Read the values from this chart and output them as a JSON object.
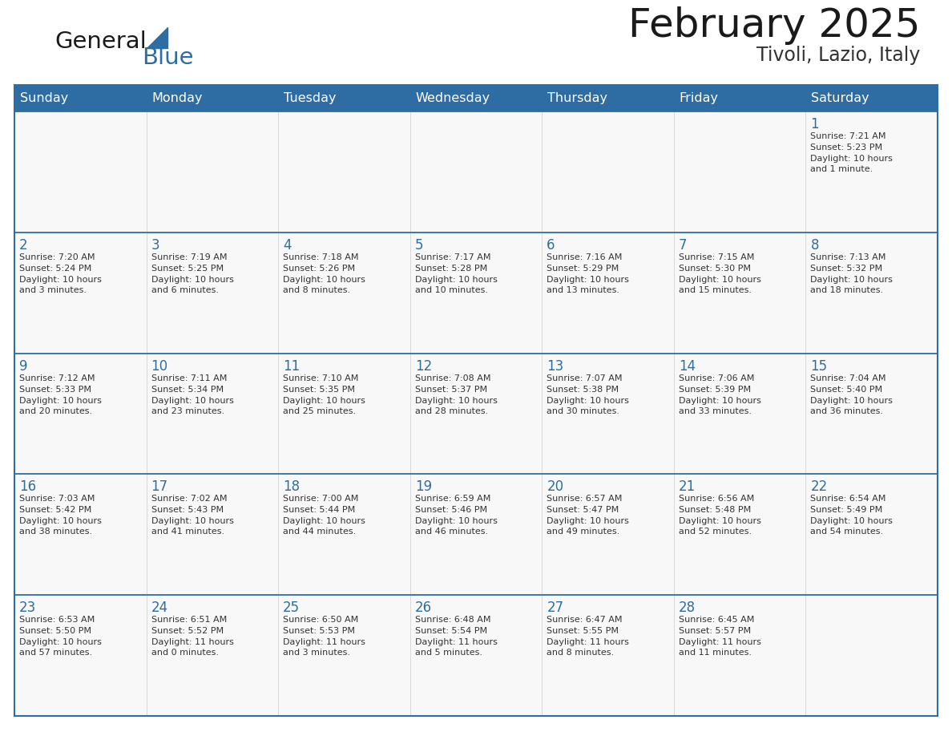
{
  "title": "February 2025",
  "subtitle": "Tivoli, Lazio, Italy",
  "header_bg": "#2E6DA4",
  "header_text_color": "#FFFFFF",
  "cell_bg": "#F8F8F8",
  "border_color": "#2E6DA4",
  "grid_color": "#CCCCCC",
  "day_headers": [
    "Sunday",
    "Monday",
    "Tuesday",
    "Wednesday",
    "Thursday",
    "Friday",
    "Saturday"
  ],
  "title_color": "#1a1a1a",
  "subtitle_color": "#333333",
  "day_num_color": "#2E6DA4",
  "text_color": "#333333",
  "logo_general_color": "#1a1a1a",
  "logo_blue_color": "#2E6DA4",
  "calendar": [
    [
      null,
      null,
      null,
      null,
      null,
      null,
      {
        "day": 1,
        "sunrise": "7:21 AM",
        "sunset": "5:23 PM",
        "daylight_line1": "Daylight: 10 hours",
        "daylight_line2": "and 1 minute."
      }
    ],
    [
      {
        "day": 2,
        "sunrise": "7:20 AM",
        "sunset": "5:24 PM",
        "daylight_line1": "Daylight: 10 hours",
        "daylight_line2": "and 3 minutes."
      },
      {
        "day": 3,
        "sunrise": "7:19 AM",
        "sunset": "5:25 PM",
        "daylight_line1": "Daylight: 10 hours",
        "daylight_line2": "and 6 minutes."
      },
      {
        "day": 4,
        "sunrise": "7:18 AM",
        "sunset": "5:26 PM",
        "daylight_line1": "Daylight: 10 hours",
        "daylight_line2": "and 8 minutes."
      },
      {
        "day": 5,
        "sunrise": "7:17 AM",
        "sunset": "5:28 PM",
        "daylight_line1": "Daylight: 10 hours",
        "daylight_line2": "and 10 minutes."
      },
      {
        "day": 6,
        "sunrise": "7:16 AM",
        "sunset": "5:29 PM",
        "daylight_line1": "Daylight: 10 hours",
        "daylight_line2": "and 13 minutes."
      },
      {
        "day": 7,
        "sunrise": "7:15 AM",
        "sunset": "5:30 PM",
        "daylight_line1": "Daylight: 10 hours",
        "daylight_line2": "and 15 minutes."
      },
      {
        "day": 8,
        "sunrise": "7:13 AM",
        "sunset": "5:32 PM",
        "daylight_line1": "Daylight: 10 hours",
        "daylight_line2": "and 18 minutes."
      }
    ],
    [
      {
        "day": 9,
        "sunrise": "7:12 AM",
        "sunset": "5:33 PM",
        "daylight_line1": "Daylight: 10 hours",
        "daylight_line2": "and 20 minutes."
      },
      {
        "day": 10,
        "sunrise": "7:11 AM",
        "sunset": "5:34 PM",
        "daylight_line1": "Daylight: 10 hours",
        "daylight_line2": "and 23 minutes."
      },
      {
        "day": 11,
        "sunrise": "7:10 AM",
        "sunset": "5:35 PM",
        "daylight_line1": "Daylight: 10 hours",
        "daylight_line2": "and 25 minutes."
      },
      {
        "day": 12,
        "sunrise": "7:08 AM",
        "sunset": "5:37 PM",
        "daylight_line1": "Daylight: 10 hours",
        "daylight_line2": "and 28 minutes."
      },
      {
        "day": 13,
        "sunrise": "7:07 AM",
        "sunset": "5:38 PM",
        "daylight_line1": "Daylight: 10 hours",
        "daylight_line2": "and 30 minutes."
      },
      {
        "day": 14,
        "sunrise": "7:06 AM",
        "sunset": "5:39 PM",
        "daylight_line1": "Daylight: 10 hours",
        "daylight_line2": "and 33 minutes."
      },
      {
        "day": 15,
        "sunrise": "7:04 AM",
        "sunset": "5:40 PM",
        "daylight_line1": "Daylight: 10 hours",
        "daylight_line2": "and 36 minutes."
      }
    ],
    [
      {
        "day": 16,
        "sunrise": "7:03 AM",
        "sunset": "5:42 PM",
        "daylight_line1": "Daylight: 10 hours",
        "daylight_line2": "and 38 minutes."
      },
      {
        "day": 17,
        "sunrise": "7:02 AM",
        "sunset": "5:43 PM",
        "daylight_line1": "Daylight: 10 hours",
        "daylight_line2": "and 41 minutes."
      },
      {
        "day": 18,
        "sunrise": "7:00 AM",
        "sunset": "5:44 PM",
        "daylight_line1": "Daylight: 10 hours",
        "daylight_line2": "and 44 minutes."
      },
      {
        "day": 19,
        "sunrise": "6:59 AM",
        "sunset": "5:46 PM",
        "daylight_line1": "Daylight: 10 hours",
        "daylight_line2": "and 46 minutes."
      },
      {
        "day": 20,
        "sunrise": "6:57 AM",
        "sunset": "5:47 PM",
        "daylight_line1": "Daylight: 10 hours",
        "daylight_line2": "and 49 minutes."
      },
      {
        "day": 21,
        "sunrise": "6:56 AM",
        "sunset": "5:48 PM",
        "daylight_line1": "Daylight: 10 hours",
        "daylight_line2": "and 52 minutes."
      },
      {
        "day": 22,
        "sunrise": "6:54 AM",
        "sunset": "5:49 PM",
        "daylight_line1": "Daylight: 10 hours",
        "daylight_line2": "and 54 minutes."
      }
    ],
    [
      {
        "day": 23,
        "sunrise": "6:53 AM",
        "sunset": "5:50 PM",
        "daylight_line1": "Daylight: 10 hours",
        "daylight_line2": "and 57 minutes."
      },
      {
        "day": 24,
        "sunrise": "6:51 AM",
        "sunset": "5:52 PM",
        "daylight_line1": "Daylight: 11 hours",
        "daylight_line2": "and 0 minutes."
      },
      {
        "day": 25,
        "sunrise": "6:50 AM",
        "sunset": "5:53 PM",
        "daylight_line1": "Daylight: 11 hours",
        "daylight_line2": "and 3 minutes."
      },
      {
        "day": 26,
        "sunrise": "6:48 AM",
        "sunset": "5:54 PM",
        "daylight_line1": "Daylight: 11 hours",
        "daylight_line2": "and 5 minutes."
      },
      {
        "day": 27,
        "sunrise": "6:47 AM",
        "sunset": "5:55 PM",
        "daylight_line1": "Daylight: 11 hours",
        "daylight_line2": "and 8 minutes."
      },
      {
        "day": 28,
        "sunrise": "6:45 AM",
        "sunset": "5:57 PM",
        "daylight_line1": "Daylight: 11 hours",
        "daylight_line2": "and 11 minutes."
      },
      null
    ]
  ],
  "fig_width": 11.88,
  "fig_height": 9.18
}
